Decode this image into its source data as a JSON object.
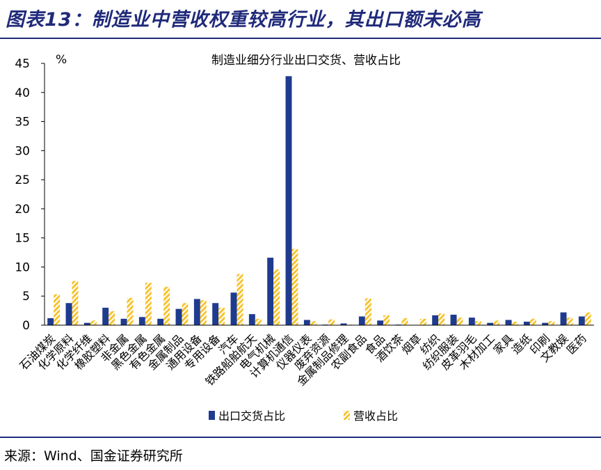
{
  "figure_title": "图表13：制造业中营收权重较高行业，其出口额未必高",
  "source_note": "来源：Wind、国金证券研究所",
  "colors": {
    "export": "#1f3b8f",
    "revenue": "#f6c431",
    "title": "#1f2a7a"
  },
  "chart_data": {
    "type": "bar",
    "title": "制造业细分行业出口交货、营收占比",
    "ylabel": "%",
    "xlabel": "",
    "ylim": [
      0,
      45
    ],
    "yticks": [
      0,
      5,
      10,
      15,
      20,
      25,
      30,
      35,
      40,
      45
    ],
    "grid": false,
    "legend_position": "bottom",
    "categories": [
      "石油煤炭",
      "化学原料",
      "化学纤维",
      "橡胶塑料",
      "非金属",
      "黑色金属",
      "有色金属",
      "金属制品",
      "通用设备",
      "专用设备",
      "汽车",
      "铁路船舶航天",
      "电气机械",
      "计算机通信",
      "仪器仪表",
      "废弃资源",
      "金属制品修理",
      "农副食品",
      "食品",
      "酒饮茶",
      "烟草",
      "纺织",
      "纺织服装",
      "皮革羽毛",
      "木材加工",
      "家具",
      "造纸",
      "印刷",
      "文教娱",
      "医药"
    ],
    "series": [
      {
        "name": "出口交货占比",
        "values": [
          1.2,
          3.8,
          0.4,
          3.0,
          1.1,
          1.4,
          1.1,
          2.8,
          4.5,
          3.8,
          5.6,
          1.9,
          11.6,
          42.8,
          0.9,
          0.1,
          0.3,
          1.5,
          0.8,
          0.1,
          0.0,
          1.7,
          1.8,
          1.3,
          0.4,
          0.9,
          0.6,
          0.4,
          2.2,
          1.5
        ]
      },
      {
        "name": "营收占比",
        "values": [
          5.3,
          7.6,
          0.8,
          2.4,
          4.7,
          7.3,
          6.6,
          3.8,
          4.3,
          3.0,
          8.8,
          1.1,
          9.6,
          13.1,
          0.7,
          1.0,
          0.1,
          4.6,
          1.7,
          1.2,
          1.1,
          2.0,
          1.3,
          0.7,
          0.8,
          0.6,
          1.1,
          0.7,
          1.3,
          2.2
        ]
      }
    ]
  }
}
